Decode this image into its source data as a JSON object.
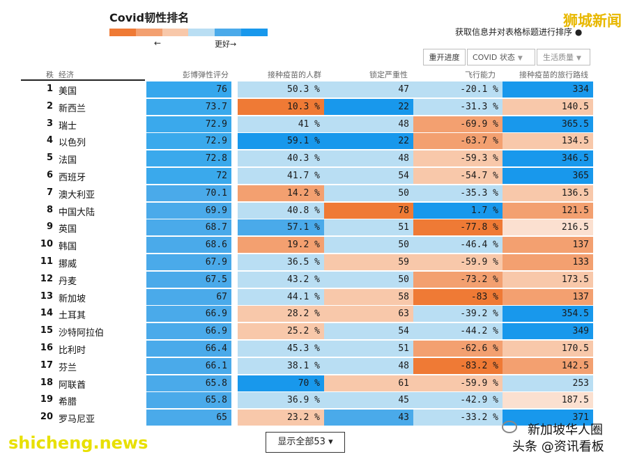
{
  "header": {
    "title": "Covid韧性排名",
    "legend_colors": [
      "#ef7a35",
      "#f3a070",
      "#f8c8aa",
      "#b9def3",
      "#4aaaea",
      "#1898ec"
    ],
    "legend_left": "←",
    "legend_right": "更好→",
    "sort_hint": "获取信息并对表格标题进行排序",
    "watermark_top": "狮城新闻"
  },
  "toolbar": {
    "reopen": "重开进度",
    "covid_status": "COVID 状态",
    "life_quality": "生活质量"
  },
  "columns": {
    "rank": "秩",
    "country": "经济",
    "score": "彭博弹性评分",
    "vaccinated": "接种疫苗的人群",
    "lockdown": "锁定严重性",
    "flight": "飞行能力",
    "routes": "接种疫苗的旅行路线"
  },
  "rows": [
    {
      "rank": "1",
      "country": "美国",
      "score": "76",
      "vaccinated": "50.3 %",
      "lockdown": "47",
      "flight": "-20.1 %",
      "routes": "334",
      "colors": [
        "#35a7ed",
        "#b9def3",
        "#b9def3",
        "#b9def3",
        "#1898ec"
      ]
    },
    {
      "rank": "2",
      "country": "新西兰",
      "score": "73.7",
      "vaccinated": "10.3 %",
      "lockdown": "22",
      "flight": "-31.3 %",
      "routes": "140.5",
      "colors": [
        "#3aa9ec",
        "#ef7a35",
        "#1898ec",
        "#b9def3",
        "#f8c8aa"
      ]
    },
    {
      "rank": "3",
      "country": "瑞士",
      "score": "72.9",
      "vaccinated": "41 %",
      "lockdown": "48",
      "flight": "-69.9 %",
      "routes": "365.5",
      "colors": [
        "#3aa9ec",
        "#b9def3",
        "#b9def3",
        "#f3a070",
        "#1898ec"
      ]
    },
    {
      "rank": "4",
      "country": "以色列",
      "score": "72.9",
      "vaccinated": "59.1 %",
      "lockdown": "22",
      "flight": "-63.7 %",
      "routes": "134.5",
      "colors": [
        "#3aa9ec",
        "#1898ec",
        "#1898ec",
        "#f3a070",
        "#f8c8aa"
      ]
    },
    {
      "rank": "5",
      "country": "法国",
      "score": "72.8",
      "vaccinated": "40.3 %",
      "lockdown": "48",
      "flight": "-59.3 %",
      "routes": "346.5",
      "colors": [
        "#3aa9ec",
        "#b9def3",
        "#b9def3",
        "#f8c8aa",
        "#1898ec"
      ]
    },
    {
      "rank": "6",
      "country": "西班牙",
      "score": "72",
      "vaccinated": "41.7 %",
      "lockdown": "54",
      "flight": "-54.7 %",
      "routes": "365",
      "colors": [
        "#3aa9ec",
        "#b9def3",
        "#b9def3",
        "#f8c8aa",
        "#1898ec"
      ]
    },
    {
      "rank": "7",
      "country": "澳大利亚",
      "score": "70.1",
      "vaccinated": "14.2 %",
      "lockdown": "50",
      "flight": "-35.3 %",
      "routes": "136.5",
      "colors": [
        "#4aaaea",
        "#f3a070",
        "#b9def3",
        "#b9def3",
        "#f8c8aa"
      ]
    },
    {
      "rank": "8",
      "country": "中国大陆",
      "score": "69.9",
      "vaccinated": "40.8 %",
      "lockdown": "78",
      "flight": "1.7 %",
      "routes": "121.5",
      "colors": [
        "#4aaaea",
        "#b9def3",
        "#ef7a35",
        "#1898ec",
        "#f3a070"
      ]
    },
    {
      "rank": "9",
      "country": "英国",
      "score": "68.7",
      "vaccinated": "57.1 %",
      "lockdown": "51",
      "flight": "-77.8 %",
      "routes": "216.5",
      "colors": [
        "#4aaaea",
        "#4aaaea",
        "#b9def3",
        "#ef7a35",
        "#fbe0d0"
      ]
    },
    {
      "rank": "10",
      "country": "韩国",
      "score": "68.6",
      "vaccinated": "19.2 %",
      "lockdown": "50",
      "flight": "-46.4 %",
      "routes": "137",
      "colors": [
        "#4aaaea",
        "#f3a070",
        "#b9def3",
        "#b9def3",
        "#f3a070"
      ]
    },
    {
      "rank": "11",
      "country": "挪威",
      "score": "67.9",
      "vaccinated": "36.5 %",
      "lockdown": "59",
      "flight": "-59.9 %",
      "routes": "133",
      "colors": [
        "#4aaaea",
        "#b9def3",
        "#f8c8aa",
        "#f8c8aa",
        "#f3a070"
      ]
    },
    {
      "rank": "12",
      "country": "丹麦",
      "score": "67.5",
      "vaccinated": "43.2 %",
      "lockdown": "50",
      "flight": "-73.2 %",
      "routes": "173.5",
      "colors": [
        "#4aaaea",
        "#b9def3",
        "#b9def3",
        "#f3a070",
        "#f8c8aa"
      ]
    },
    {
      "rank": "13",
      "country": "新加坡",
      "score": "67",
      "vaccinated": "44.1 %",
      "lockdown": "58",
      "flight": "-83 %",
      "routes": "137",
      "colors": [
        "#4aaaea",
        "#b9def3",
        "#f8c8aa",
        "#ef7a35",
        "#f3a070"
      ]
    },
    {
      "rank": "14",
      "country": "土耳其",
      "score": "66.9",
      "vaccinated": "28.2 %",
      "lockdown": "63",
      "flight": "-39.2 %",
      "routes": "354.5",
      "colors": [
        "#4aaaea",
        "#f8c8aa",
        "#f8c8aa",
        "#b9def3",
        "#1898ec"
      ]
    },
    {
      "rank": "15",
      "country": "沙特阿拉伯",
      "score": "66.9",
      "vaccinated": "25.2 %",
      "lockdown": "54",
      "flight": "-44.2 %",
      "routes": "349",
      "colors": [
        "#4aaaea",
        "#f8c8aa",
        "#b9def3",
        "#b9def3",
        "#1898ec"
      ]
    },
    {
      "rank": "16",
      "country": "比利时",
      "score": "66.4",
      "vaccinated": "45.3 %",
      "lockdown": "51",
      "flight": "-62.6 %",
      "routes": "170.5",
      "colors": [
        "#4aaaea",
        "#b9def3",
        "#b9def3",
        "#f3a070",
        "#f8c8aa"
      ]
    },
    {
      "rank": "17",
      "country": "芬兰",
      "score": "66.1",
      "vaccinated": "38.1 %",
      "lockdown": "48",
      "flight": "-83.2 %",
      "routes": "142.5",
      "colors": [
        "#4aaaea",
        "#b9def3",
        "#b9def3",
        "#ef7a35",
        "#f3a070"
      ]
    },
    {
      "rank": "18",
      "country": "阿联酋",
      "score": "65.8",
      "vaccinated": "70 %",
      "lockdown": "61",
      "flight": "-59.9 %",
      "routes": "253",
      "colors": [
        "#4aaaea",
        "#1898ec",
        "#f8c8aa",
        "#f8c8aa",
        "#b9def3"
      ]
    },
    {
      "rank": "19",
      "country": "希腊",
      "score": "65.8",
      "vaccinated": "36.9 %",
      "lockdown": "45",
      "flight": "-42.9 %",
      "routes": "187.5",
      "colors": [
        "#4aaaea",
        "#b9def3",
        "#b9def3",
        "#b9def3",
        "#fbe0d0"
      ]
    },
    {
      "rank": "20",
      "country": "罗马尼亚",
      "score": "65",
      "vaccinated": "23.2 %",
      "lockdown": "43",
      "flight": "-33.2 %",
      "routes": "371",
      "colors": [
        "#4aaaea",
        "#f8c8aa",
        "#4aaaea",
        "#b9def3",
        "#1898ec"
      ]
    }
  ],
  "footer": {
    "show_all": "显示全部53 ▾",
    "wm_left": "shicheng.news",
    "wm_right1": "新加坡华人圈",
    "wm_right2": "头条 @资讯看板"
  }
}
